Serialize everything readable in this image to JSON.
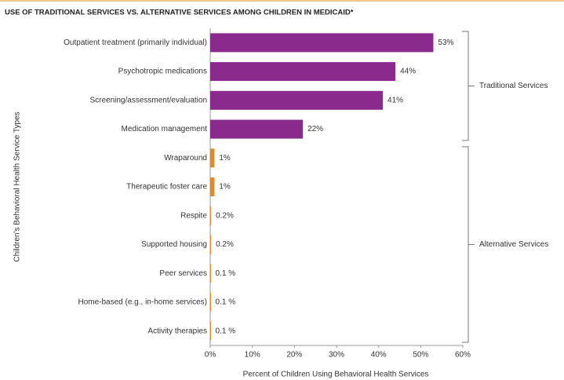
{
  "chart_data": {
    "type": "bar",
    "orientation": "horizontal",
    "title": "USE OF TRADITIONAL SERVICES VS. ALTERNATIVE SERVICES AMONG CHILDREN IN MEDICAID*",
    "x_label": "Percent of Children Using Behavioral Health Services",
    "y_label": "Children's Behavioral Health Service Types",
    "categories": [
      "Outpatient treatment (primarily individual)",
      "Psychotropic medications",
      "Screening/assessment/evaluation",
      "Medication management",
      "Wraparound",
      "Therapeutic foster care",
      "Respite",
      "Supported housing",
      "Peer services",
      "Home-based (e.g., in-home services)",
      "Activity therapies"
    ],
    "values": [
      53,
      44,
      41,
      22,
      1,
      1,
      0.2,
      0.2,
      0.1,
      0.1,
      0.1
    ],
    "value_labels": [
      "53%",
      "44%",
      "41%",
      "22%",
      "1%",
      "1%",
      "0.2%",
      "0.2%",
      "0.1 %",
      "0.1 %",
      "0.1 %"
    ],
    "groups": [
      {
        "name": "Traditional Services",
        "color": "#8a2a8c",
        "count": 4
      },
      {
        "name": "Alternative Services",
        "color": "#dc8a35",
        "count": 7
      }
    ],
    "xlim": [
      0,
      60
    ],
    "xticks": [
      {
        "value": 0,
        "label": "0%"
      },
      {
        "value": 10,
        "label": "10%"
      },
      {
        "value": 20,
        "label": "20%"
      },
      {
        "value": 30,
        "label": "30%"
      },
      {
        "value": 40,
        "label": "40%"
      },
      {
        "value": 50,
        "label": "50%"
      },
      {
        "value": 60,
        "label": "60%"
      }
    ]
  }
}
